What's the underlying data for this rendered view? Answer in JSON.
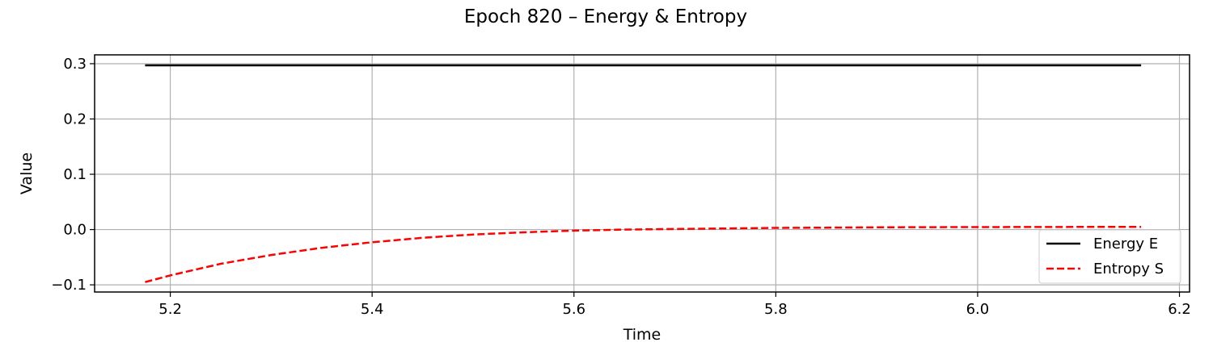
{
  "chart_data": {
    "type": "line",
    "title": "Epoch 820 – Energy & Entropy",
    "xlabel": "Time",
    "ylabel": "Value",
    "xlim": [
      5.125,
      6.21
    ],
    "ylim": [
      -0.113,
      0.316
    ],
    "xticks": [
      5.2,
      5.4,
      5.6,
      5.8,
      6.0,
      6.2
    ],
    "xtick_labels": [
      "5.2",
      "5.4",
      "5.6",
      "5.8",
      "6.0",
      "6.2"
    ],
    "yticks": [
      -0.1,
      0.0,
      0.1,
      0.2,
      0.3
    ],
    "ytick_labels": [
      "−0.1",
      "0.0",
      "0.1",
      "0.2",
      "0.3"
    ],
    "grid": true,
    "legend_position": "lower right",
    "series": [
      {
        "name": "Energy E",
        "color": "#000000",
        "style": "solid",
        "x": [
          5.175,
          5.3,
          5.4,
          5.5,
          5.6,
          5.7,
          5.8,
          5.9,
          6.0,
          6.1,
          6.162
        ],
        "y": [
          0.297,
          0.297,
          0.297,
          0.297,
          0.297,
          0.297,
          0.297,
          0.297,
          0.297,
          0.297,
          0.297
        ]
      },
      {
        "name": "Entropy S",
        "color": "#ff0000",
        "style": "dashed",
        "x": [
          5.175,
          5.2,
          5.25,
          5.3,
          5.35,
          5.4,
          5.45,
          5.5,
          5.55,
          5.6,
          5.65,
          5.7,
          5.75,
          5.8,
          5.85,
          5.9,
          5.95,
          6.0,
          6.05,
          6.1,
          6.162
        ],
        "y": [
          -0.095,
          -0.083,
          -0.062,
          -0.046,
          -0.033,
          -0.023,
          -0.015,
          -0.009,
          -0.005,
          -0.002,
          0.0,
          0.001,
          0.002,
          0.003,
          0.0035,
          0.004,
          0.0043,
          0.0045,
          0.0046,
          0.0047,
          0.0048
        ]
      }
    ]
  }
}
